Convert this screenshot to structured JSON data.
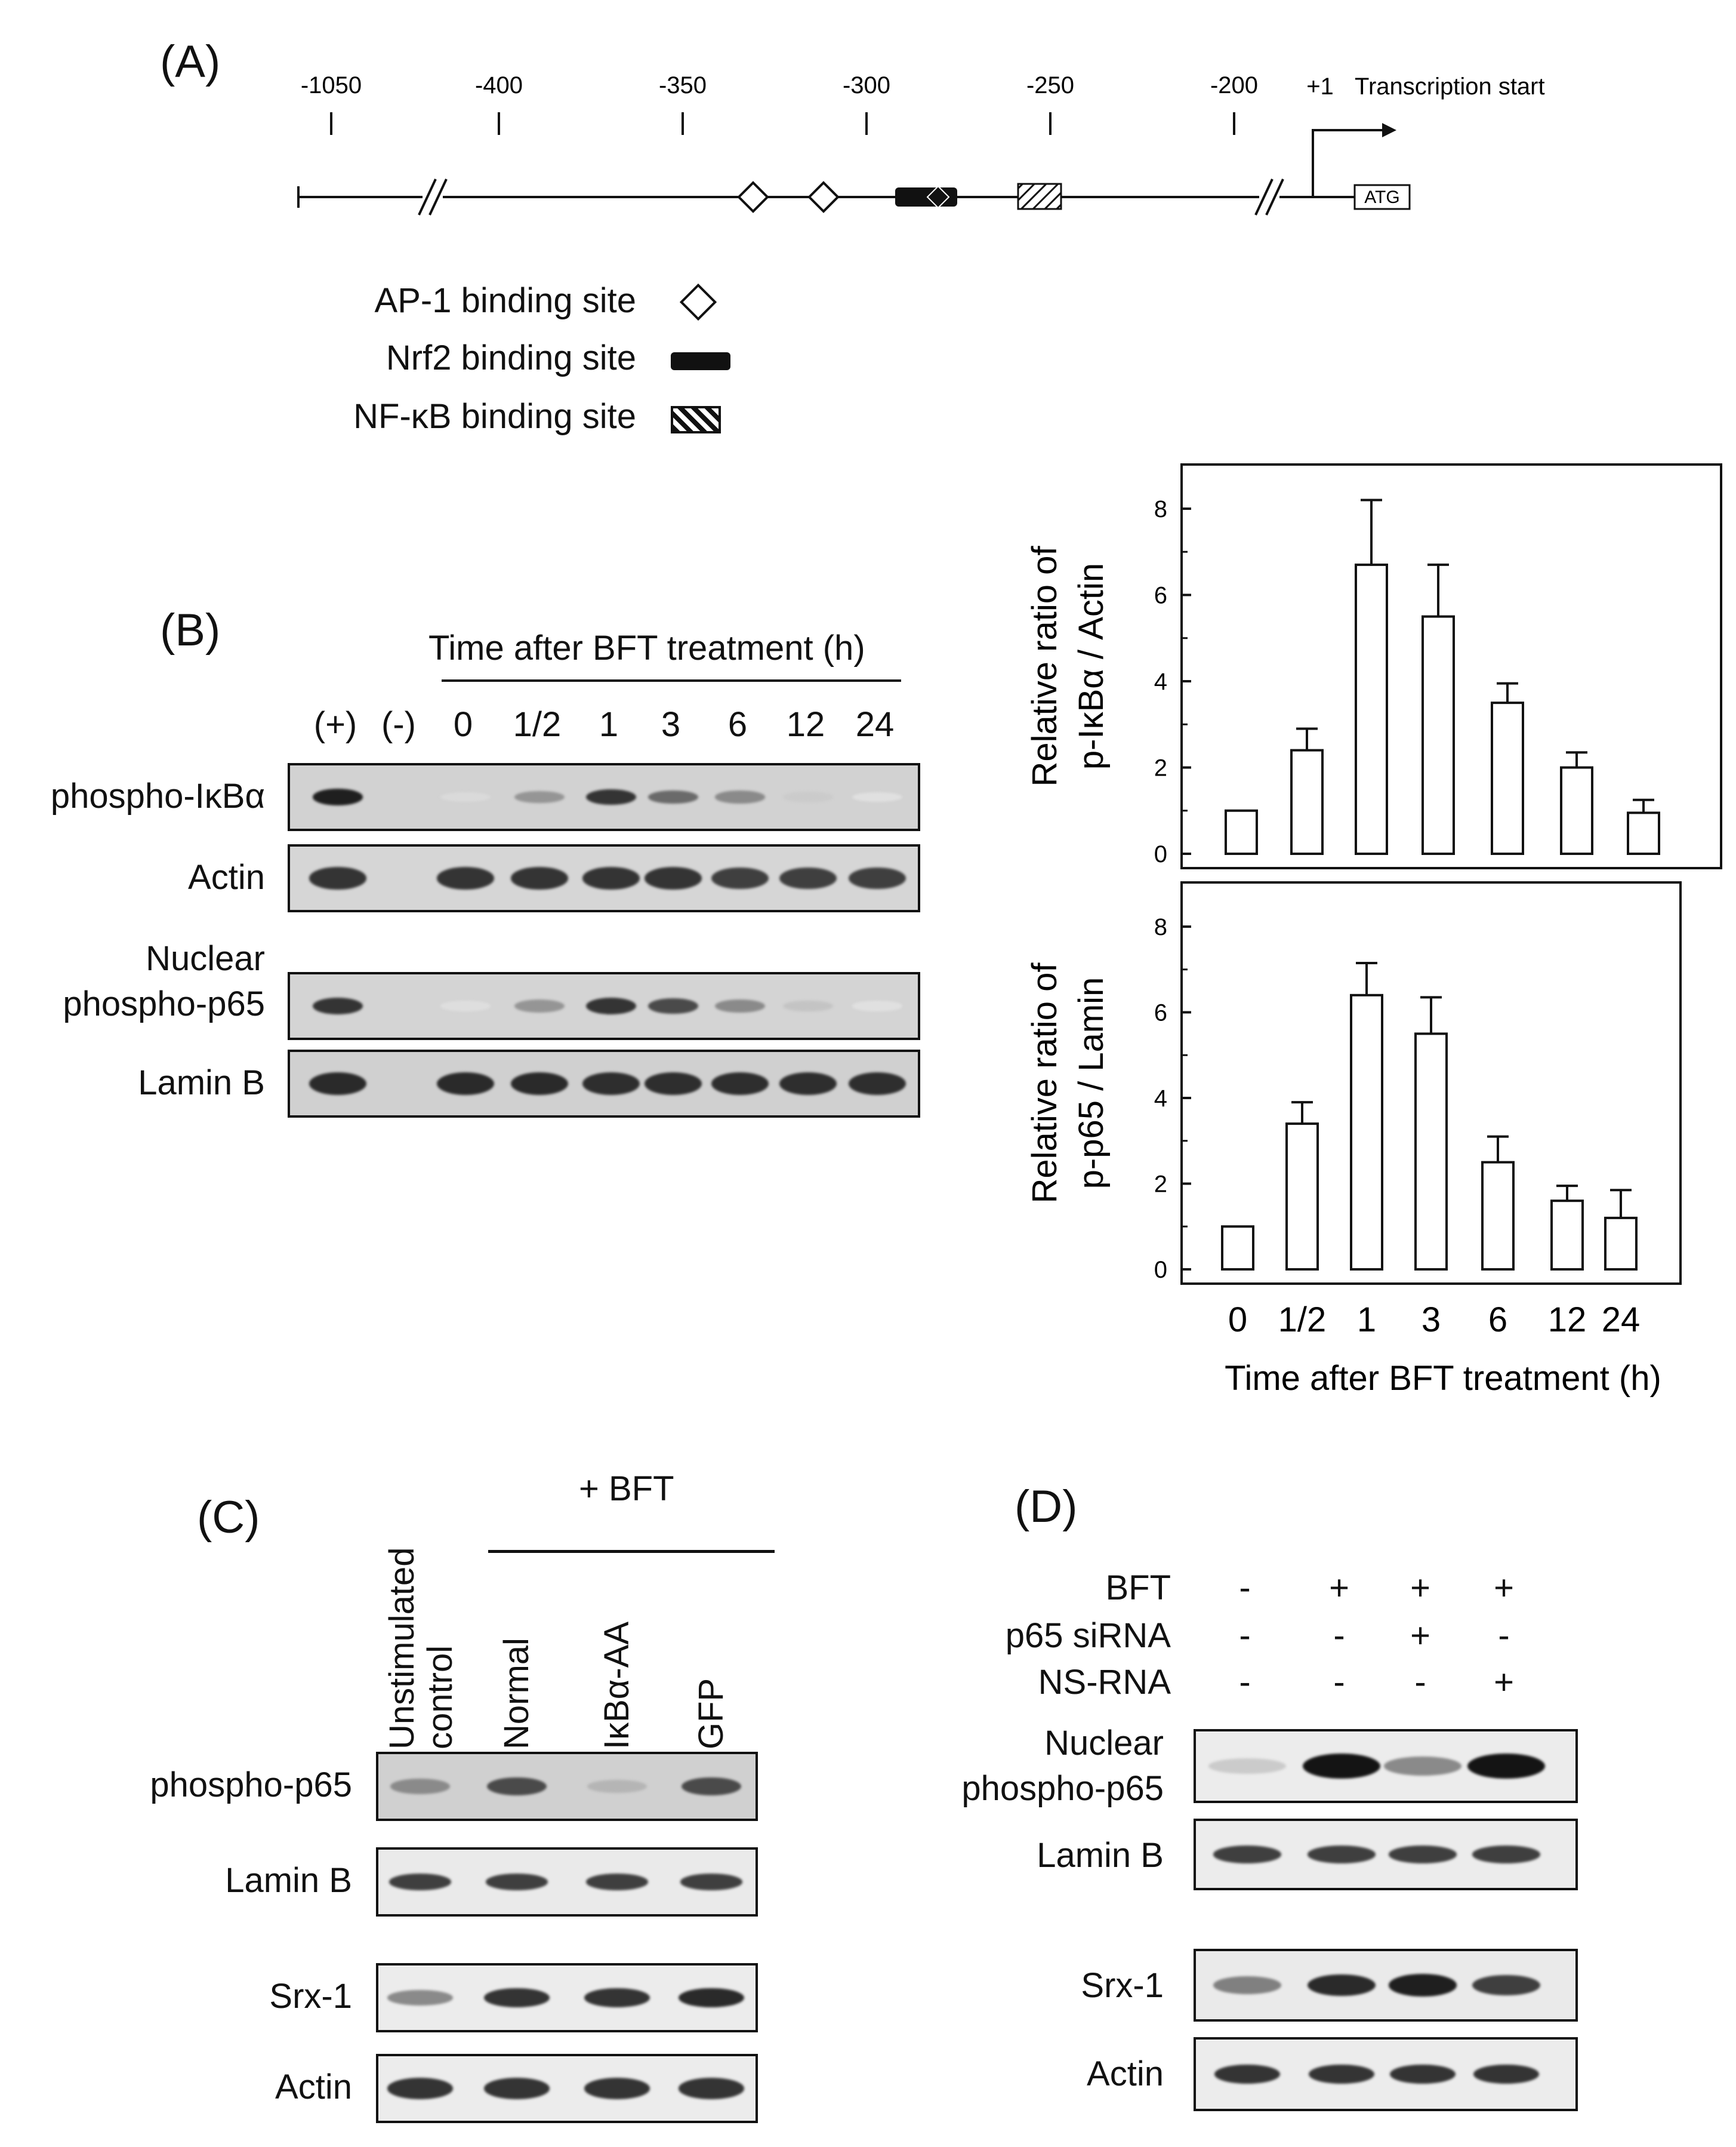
{
  "panelA": {
    "label": "(A)",
    "positions": [
      "-1050",
      "-400",
      "-350",
      "-300",
      "-250",
      "-200"
    ],
    "tss_plus1": "+1",
    "tss_label": "Transcription start",
    "atg": "ATG",
    "legend": [
      {
        "text": "AP-1 binding site",
        "symbol": "diamond-icon"
      },
      {
        "text": "Nrf2 binding site",
        "symbol": "black-bar-icon"
      },
      {
        "text": "NF-κB binding site",
        "symbol": "hatched-box-icon"
      }
    ]
  },
  "panelB": {
    "label": "(B)",
    "header": "Time after  BFT treatment  (h)",
    "lanes": [
      "(+)",
      "(-)",
      "0",
      "1/2",
      "1",
      "3",
      "6",
      "12",
      "24"
    ],
    "blots": [
      {
        "label": "phospho-IκBα",
        "intensity": [
          0.95,
          0,
          0.08,
          0.4,
          0.85,
          0.6,
          0.45,
          0.15,
          0.05
        ]
      },
      {
        "label": "Actin",
        "intensity": [
          0.85,
          0,
          0.85,
          0.85,
          0.85,
          0.85,
          0.8,
          0.8,
          0.8
        ]
      },
      {
        "label_line1": "Nuclear",
        "label_line2": "phospho-p65",
        "intensity": [
          0.85,
          0,
          0.06,
          0.4,
          0.85,
          0.75,
          0.45,
          0.18,
          0.05
        ]
      },
      {
        "label": "Lamin B",
        "intensity": [
          0.9,
          0,
          0.9,
          0.9,
          0.88,
          0.88,
          0.88,
          0.88,
          0.88
        ]
      }
    ]
  },
  "chart_data": [
    {
      "type": "bar",
      "categories": [
        "0",
        "1/2",
        "1",
        "3",
        "6",
        "12",
        "24"
      ],
      "values": [
        1.0,
        2.4,
        6.7,
        5.5,
        3.5,
        2.0,
        0.95
      ],
      "errors": [
        0,
        0.5,
        1.5,
        1.2,
        0.45,
        0.35,
        0.3
      ],
      "ylabel_line1": "Relative  ratio of",
      "ylabel_line2": "p-IκBα  / Actin",
      "ylim": [
        0,
        8
      ],
      "yticks": [
        "0",
        "2",
        "4",
        "6",
        "8"
      ]
    },
    {
      "type": "bar",
      "categories": [
        "0",
        "1/2",
        "1",
        "3",
        "6",
        "12",
        "24"
      ],
      "values": [
        1.0,
        3.4,
        6.4,
        5.5,
        2.5,
        1.6,
        1.2
      ],
      "errors": [
        0,
        0.5,
        0.75,
        0.85,
        0.6,
        0.35,
        0.65
      ],
      "ylabel_line1": "Relative  ratio of",
      "ylabel_line2": "p-p65 / Lamin",
      "ylim": [
        0,
        8
      ],
      "yticks": [
        "0",
        "2",
        "4",
        "6",
        "8"
      ],
      "xlabel": "Time after  BFT treatment  (h)"
    }
  ],
  "panelC": {
    "label": "(C)",
    "group_header": "+ BFT",
    "lanes": [
      {
        "line1": "Unstimulated",
        "line2": "control"
      },
      {
        "line1": "Normal"
      },
      {
        "line1": "IκBα-AA"
      },
      {
        "line1": "GFP"
      }
    ],
    "blots": [
      {
        "label": "phospho-p65",
        "intensity": [
          0.45,
          0.75,
          0.25,
          0.75
        ]
      },
      {
        "label": "Lamin B",
        "intensity": [
          0.8,
          0.8,
          0.8,
          0.8
        ]
      },
      {
        "label": "Srx-1",
        "intensity": [
          0.45,
          0.85,
          0.85,
          0.9
        ]
      },
      {
        "label": "Actin",
        "intensity": [
          0.85,
          0.85,
          0.85,
          0.85
        ]
      }
    ]
  },
  "panelD": {
    "label": "(D)",
    "conditions": [
      {
        "name": "BFT",
        "values": [
          "-",
          "+",
          "+",
          "+"
        ]
      },
      {
        "name": "p65 siRNA",
        "values": [
          "-",
          "-",
          "+",
          "-"
        ]
      },
      {
        "name": "NS-RNA",
        "values": [
          "-",
          "-",
          "-",
          "+"
        ]
      }
    ],
    "blots": [
      {
        "label_line1": "Nuclear",
        "label_line2": "phospho-p65",
        "intensity": [
          0.15,
          1.0,
          0.45,
          1.0
        ]
      },
      {
        "label": "Lamin B",
        "intensity": [
          0.8,
          0.8,
          0.8,
          0.8
        ]
      },
      {
        "label": "Srx-1",
        "intensity": [
          0.5,
          0.9,
          0.95,
          0.8
        ]
      },
      {
        "label": "Actin",
        "intensity": [
          0.85,
          0.85,
          0.85,
          0.85
        ]
      }
    ]
  }
}
